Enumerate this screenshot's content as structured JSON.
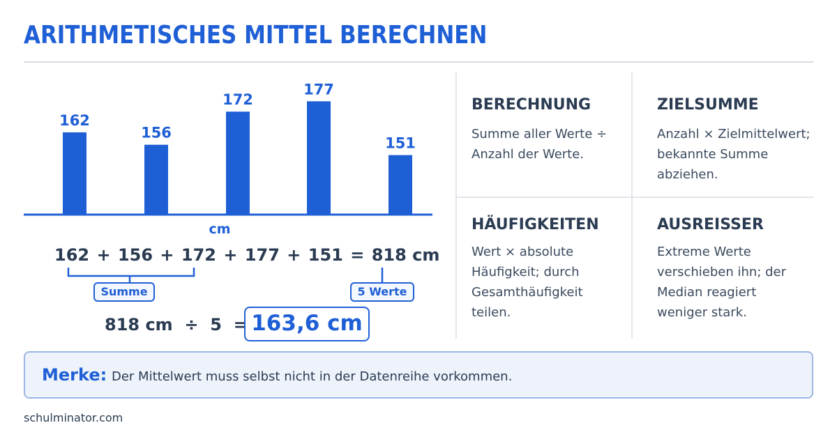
{
  "title": "ARITHMETISCHES MITTEL BERECHNEN",
  "chart_data": {
    "type": "bar",
    "categories": [
      "",
      "",
      "",
      "",
      ""
    ],
    "values": [
      162,
      156,
      172,
      177,
      151
    ],
    "data_labels": [
      "162",
      "156",
      "172",
      "177",
      "151"
    ],
    "xlabel": "cm",
    "ylabel": "",
    "ylim": [
      0,
      185
    ],
    "grid": false,
    "legend": "none",
    "bar_color": "#1f5fd6"
  },
  "equation": {
    "terms": [
      "162",
      "+",
      "156",
      "+",
      "172",
      "+",
      "177",
      "+",
      "151",
      "=",
      "818 cm"
    ],
    "sum_tag": "Summe",
    "count_tag": "5 Werte"
  },
  "division": {
    "text": "818 cm  ÷  5  =",
    "result": "163,6 cm"
  },
  "cards": [
    {
      "title": "BERECHNUNG",
      "text": "Summe aller Werte ÷ Anzahl der Werte."
    },
    {
      "title": "ZIELSUMME",
      "text": "Anzahl × Zielmittelwert; bekannte Summe abziehen."
    },
    {
      "title": "HÄUFIGKEITEN",
      "text": "Wert × absolute Häufigkeit; durch Gesamthäufigkeit teilen."
    },
    {
      "title": "AUSREISSER",
      "text": "Extreme Werte verschieben ihn; der Median reagiert weniger stark."
    }
  ],
  "merke": {
    "label": "Merke:",
    "text": "Der Mittelwert muss selbst nicht in der Datenreihe vorkommen."
  },
  "footer": "schulminator.com",
  "colors": {
    "accent": "#1f5fd6",
    "text": "#2a3b52",
    "note_bg": "#eef3fb"
  }
}
